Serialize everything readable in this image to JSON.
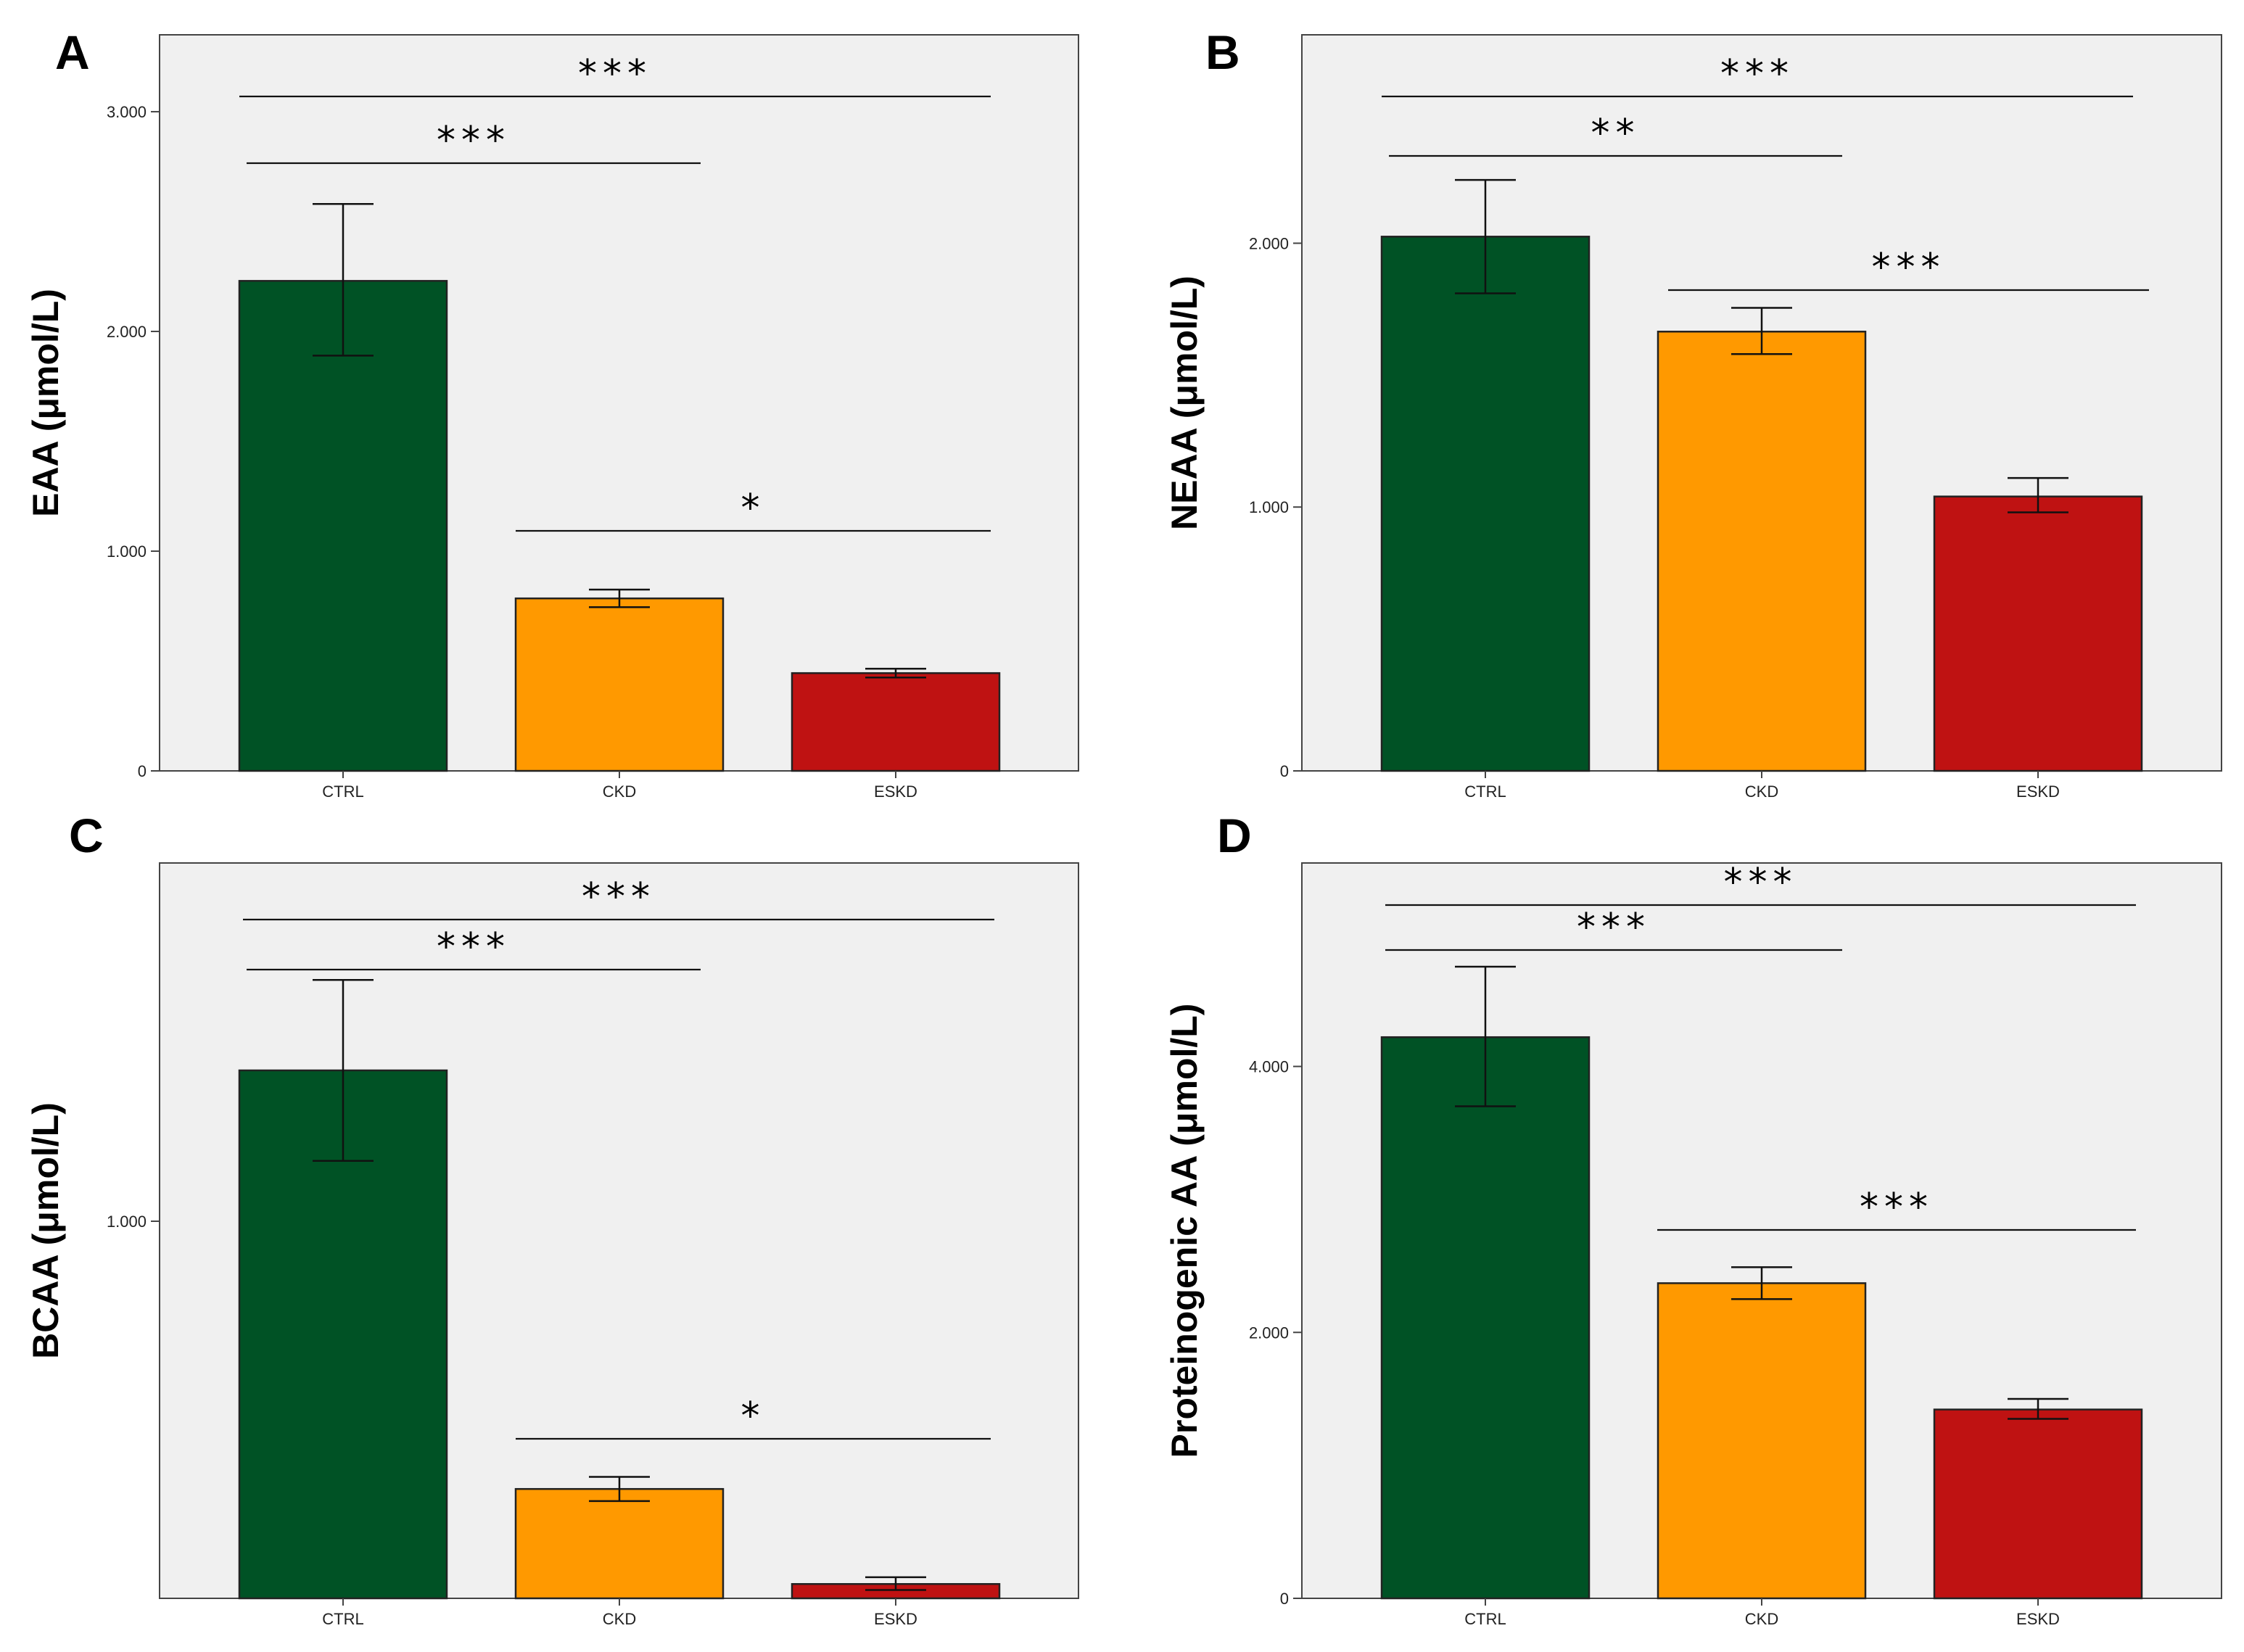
{
  "chart_data": [
    {
      "panel": "A",
      "type": "bar",
      "ylabel": "EAA (μmol/L)",
      "categories": [
        "CTRL",
        "CKD",
        "ESKD"
      ],
      "values": [
        2230,
        785,
        445
      ],
      "error_low": [
        1890,
        745,
        425
      ],
      "error_high": [
        2580,
        825,
        465
      ],
      "colors": [
        "#005225",
        "#ff9900",
        "#bf1212"
      ],
      "ylim": [
        0,
        3350
      ],
      "yticks": [
        0,
        1000,
        2000,
        3000
      ],
      "ytick_labels": [
        "0",
        "1.000",
        "2.000",
        "3.000"
      ],
      "significance": [
        {
          "from": "CTRL",
          "to": "ESKD",
          "label": "***"
        },
        {
          "from": "CTRL",
          "to": "CKD",
          "label": "***"
        },
        {
          "from": "CKD",
          "to": "ESKD",
          "label": "*"
        }
      ]
    },
    {
      "panel": "B",
      "type": "bar",
      "ylabel": "NEAA (μmol/L)",
      "categories": [
        "CTRL",
        "CKD",
        "ESKD"
      ],
      "values": [
        2025,
        1665,
        1040
      ],
      "error_low": [
        1810,
        1580,
        980
      ],
      "error_high": [
        2240,
        1755,
        1110
      ],
      "colors": [
        "#005225",
        "#ff9900",
        "#bf1212"
      ],
      "ylim": [
        0,
        2790
      ],
      "yticks": [
        0,
        1000,
        2000
      ],
      "ytick_labels": [
        "0",
        "1.000",
        "2.000"
      ],
      "significance": [
        {
          "from": "CTRL",
          "to": "ESKD",
          "label": "***"
        },
        {
          "from": "CTRL",
          "to": "CKD",
          "label": "**"
        },
        {
          "from": "CKD",
          "to": "ESKD",
          "label": "***"
        }
      ]
    },
    {
      "panel": "C",
      "type": "bar",
      "ylabel": "BCAA (μmol/L)",
      "categories": [
        "CTRL",
        "CKD",
        "ESKD"
      ],
      "values": [
        1400,
        290,
        38
      ],
      "error_low": [
        1160,
        258,
        22
      ],
      "error_high": [
        1640,
        322,
        56
      ],
      "colors": [
        "#005225",
        "#ff9900",
        "#bf1212"
      ],
      "ylim": [
        0,
        1950
      ],
      "yticks": [
        1000
      ],
      "ytick_labels": [
        "1.000"
      ],
      "significance": [
        {
          "from": "CTRL",
          "to": "ESKD",
          "label": "***"
        },
        {
          "from": "CTRL",
          "to": "CKD",
          "label": "***"
        },
        {
          "from": "CKD",
          "to": "ESKD",
          "label": "*"
        }
      ]
    },
    {
      "panel": "D",
      "type": "bar",
      "ylabel": "Proteinogenic AA (μmol/L)",
      "categories": [
        "CTRL",
        "CKD",
        "ESKD"
      ],
      "values": [
        4220,
        2370,
        1420
      ],
      "error_low": [
        3700,
        2250,
        1350
      ],
      "error_high": [
        4750,
        2490,
        1500
      ],
      "colors": [
        "#005225",
        "#ff9900",
        "#bf1212"
      ],
      "ylim": [
        0,
        5530
      ],
      "yticks": [
        0,
        2000,
        4000
      ],
      "ytick_labels": [
        "0",
        "2.000",
        "4.000"
      ],
      "significance": [
        {
          "from": "CTRL",
          "to": "ESKD",
          "label": "***"
        },
        {
          "from": "CTRL",
          "to": "CKD",
          "label": "***"
        },
        {
          "from": "CKD",
          "to": "ESKD",
          "label": "***"
        }
      ]
    }
  ]
}
